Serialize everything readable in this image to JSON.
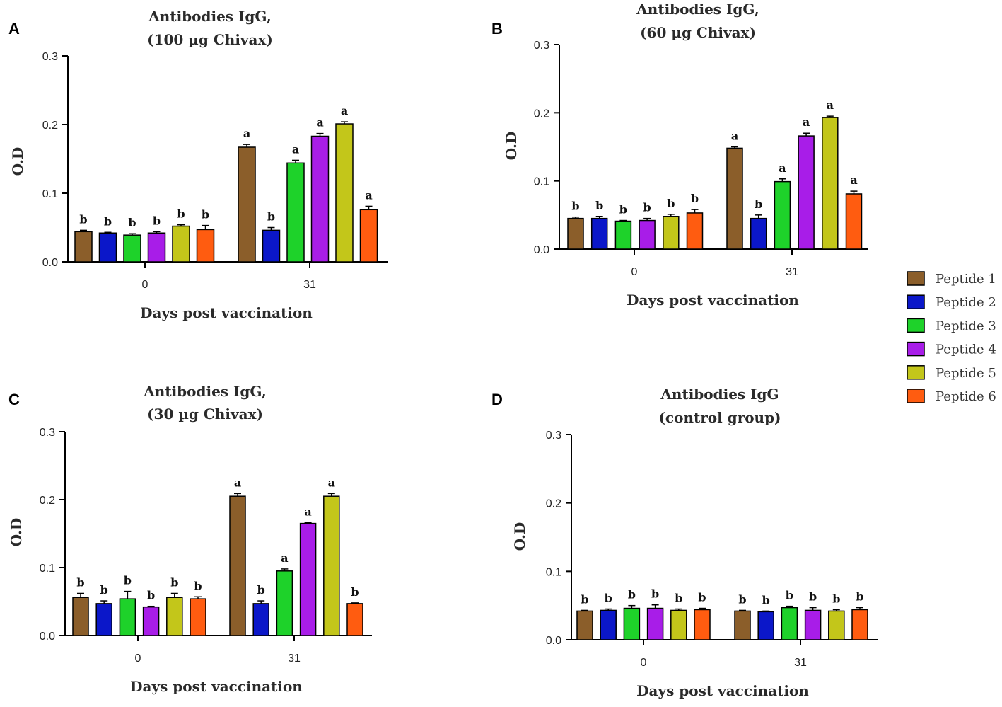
{
  "legend": [
    {
      "name": "Peptide 1",
      "color": "#8B5E2A"
    },
    {
      "name": "Peptide 2",
      "color": "#0B17C9"
    },
    {
      "name": "Peptide 3",
      "color": "#1ED22A"
    },
    {
      "name": "Peptide 4",
      "color": "#A81DE8"
    },
    {
      "name": "Peptide 5",
      "color": "#C3C61A"
    },
    {
      "name": "Peptide 6",
      "color": "#FF5C10"
    }
  ],
  "chart_data": [
    {
      "panel": "A",
      "type": "bar",
      "title": [
        "Antibodies IgG,",
        "(100 µg Chivax)"
      ],
      "xlabel": "Days post vaccination",
      "ylabel": "O.D",
      "ylim": [
        0,
        0.3
      ],
      "yticks": [
        "0.0",
        "0.1",
        "0.2",
        "0.3"
      ],
      "categories": [
        "0",
        "31"
      ],
      "series": [
        {
          "name": "Peptide 1",
          "values": [
            0.044,
            0.167
          ],
          "errors": [
            0.002,
            0.004
          ],
          "letters": [
            "b",
            "a"
          ]
        },
        {
          "name": "Peptide 2",
          "values": [
            0.042,
            0.046
          ],
          "errors": [
            0.001,
            0.004
          ],
          "letters": [
            "b",
            "b"
          ]
        },
        {
          "name": "Peptide 3",
          "values": [
            0.039,
            0.144
          ],
          "errors": [
            0.002,
            0.004
          ],
          "letters": [
            "b",
            "a"
          ]
        },
        {
          "name": "Peptide 4",
          "values": [
            0.042,
            0.183
          ],
          "errors": [
            0.002,
            0.004
          ],
          "letters": [
            "b",
            "a"
          ]
        },
        {
          "name": "Peptide 5",
          "values": [
            0.052,
            0.201
          ],
          "errors": [
            0.002,
            0.003
          ],
          "letters": [
            "b",
            "a"
          ]
        },
        {
          "name": "Peptide 6",
          "values": [
            0.047,
            0.076
          ],
          "errors": [
            0.006,
            0.005
          ],
          "letters": [
            "b",
            "a"
          ]
        }
      ]
    },
    {
      "panel": "B",
      "type": "bar",
      "title": [
        "Antibodies IgG,",
        "(60 µg Chivax)"
      ],
      "xlabel": "Days post vaccination",
      "ylabel": "O.D",
      "ylim": [
        0,
        0.3
      ],
      "yticks": [
        "0.0",
        "0.1",
        "0.2",
        "0.3"
      ],
      "categories": [
        "0",
        "31"
      ],
      "series": [
        {
          "name": "Peptide 1",
          "values": [
            0.045,
            0.148
          ],
          "errors": [
            0.002,
            0.002
          ],
          "letters": [
            "b",
            "a"
          ]
        },
        {
          "name": "Peptide 2",
          "values": [
            0.045,
            0.045
          ],
          "errors": [
            0.003,
            0.005
          ],
          "letters": [
            "b",
            "b"
          ]
        },
        {
          "name": "Peptide 3",
          "values": [
            0.041,
            0.099
          ],
          "errors": [
            0.001,
            0.004
          ],
          "letters": [
            "b",
            "a"
          ]
        },
        {
          "name": "Peptide 4",
          "values": [
            0.042,
            0.166
          ],
          "errors": [
            0.003,
            0.004
          ],
          "letters": [
            "b",
            "a"
          ]
        },
        {
          "name": "Peptide 5",
          "values": [
            0.048,
            0.193
          ],
          "errors": [
            0.003,
            0.002
          ],
          "letters": [
            "b",
            "a"
          ]
        },
        {
          "name": "Peptide 6",
          "values": [
            0.053,
            0.081
          ],
          "errors": [
            0.005,
            0.004
          ],
          "letters": [
            "b",
            "a"
          ]
        }
      ]
    },
    {
      "panel": "C",
      "type": "bar",
      "title": [
        "Antibodies IgG,",
        "(30 µg Chivax)"
      ],
      "xlabel": "Days post vaccination",
      "ylabel": "O.D",
      "ylim": [
        0,
        0.3
      ],
      "yticks": [
        "0.0",
        "0.1",
        "0.2",
        "0.3"
      ],
      "categories": [
        "0",
        "31"
      ],
      "series": [
        {
          "name": "Peptide 1",
          "values": [
            0.056,
            0.205
          ],
          "errors": [
            0.006,
            0.004
          ],
          "letters": [
            "b",
            "a"
          ]
        },
        {
          "name": "Peptide 2",
          "values": [
            0.047,
            0.047
          ],
          "errors": [
            0.004,
            0.004
          ],
          "letters": [
            "b",
            "b"
          ]
        },
        {
          "name": "Peptide 3",
          "values": [
            0.054,
            0.095
          ],
          "errors": [
            0.011,
            0.003
          ],
          "letters": [
            "b",
            "a"
          ]
        },
        {
          "name": "Peptide 4",
          "values": [
            0.042,
            0.165
          ],
          "errors": [
            0.001,
            0.001
          ],
          "letters": [
            "b",
            "a"
          ]
        },
        {
          "name": "Peptide 5",
          "values": [
            0.056,
            0.205
          ],
          "errors": [
            0.006,
            0.004
          ],
          "letters": [
            "b",
            "a"
          ]
        },
        {
          "name": "Peptide 6",
          "values": [
            0.054,
            0.047
          ],
          "errors": [
            0.003,
            0.001
          ],
          "letters": [
            "b",
            "b"
          ]
        }
      ]
    },
    {
      "panel": "D",
      "type": "bar",
      "title": [
        "Antibodies IgG",
        "(control group)"
      ],
      "xlabel": "Days post vaccination",
      "ylabel": "O.D",
      "ylim": [
        0,
        0.3
      ],
      "yticks": [
        "0.0",
        "0.1",
        "0.2",
        "0.3"
      ],
      "categories": [
        "0",
        "31"
      ],
      "series": [
        {
          "name": "Peptide 1",
          "values": [
            0.042,
            0.042
          ],
          "errors": [
            0.001,
            0.001
          ],
          "letters": [
            "b",
            "b"
          ]
        },
        {
          "name": "Peptide 2",
          "values": [
            0.043,
            0.041
          ],
          "errors": [
            0.002,
            0.001
          ],
          "letters": [
            "b",
            "b"
          ]
        },
        {
          "name": "Peptide 3",
          "values": [
            0.046,
            0.047
          ],
          "errors": [
            0.004,
            0.002
          ],
          "letters": [
            "b",
            "b"
          ]
        },
        {
          "name": "Peptide 4",
          "values": [
            0.046,
            0.043
          ],
          "errors": [
            0.005,
            0.004
          ],
          "letters": [
            "b",
            "b"
          ]
        },
        {
          "name": "Peptide 5",
          "values": [
            0.043,
            0.042
          ],
          "errors": [
            0.002,
            0.002
          ],
          "letters": [
            "b",
            "b"
          ]
        },
        {
          "name": "Peptide 6",
          "values": [
            0.044,
            0.044
          ],
          "errors": [
            0.002,
            0.003
          ],
          "letters": [
            "b",
            "b"
          ]
        }
      ]
    }
  ]
}
